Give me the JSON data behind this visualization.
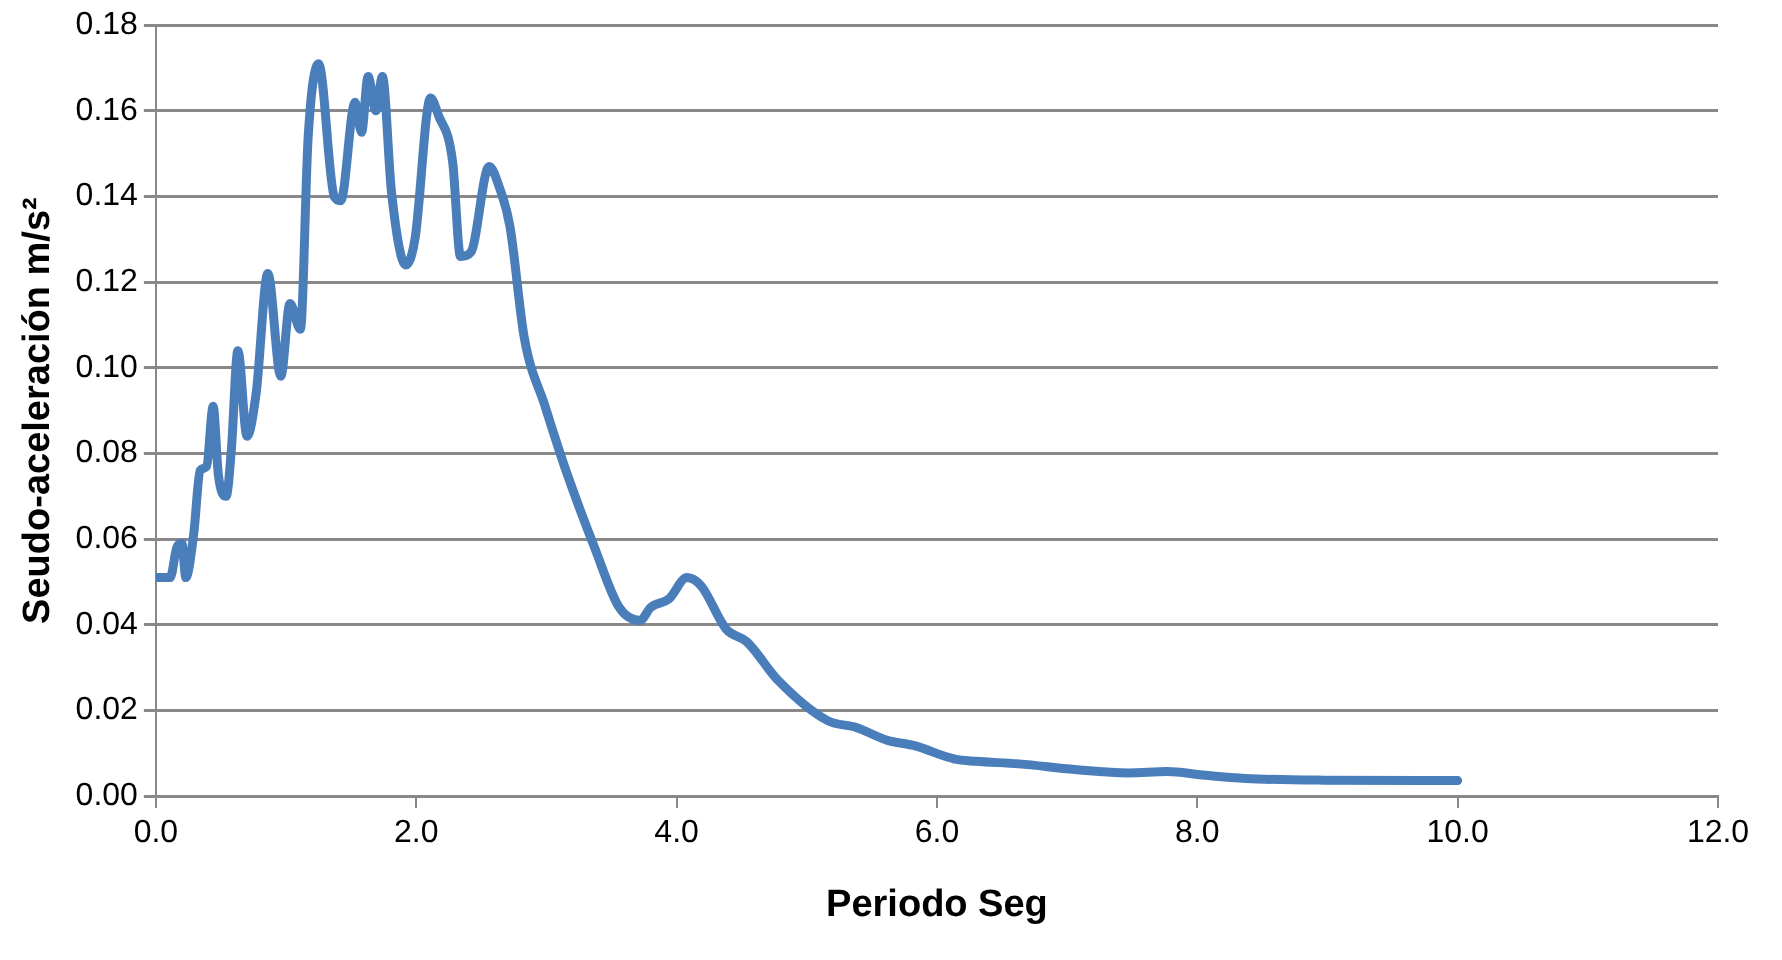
{
  "chart_data": {
    "type": "line",
    "xlabel": "Periodo Seg",
    "ylabel": "Seudo-aceleración m/s²",
    "x": [
      0.0,
      0.11,
      0.16,
      0.2,
      0.23,
      0.29,
      0.34,
      0.39,
      0.44,
      0.48,
      0.54,
      0.58,
      0.63,
      0.7,
      0.77,
      0.86,
      0.96,
      1.03,
      1.11,
      1.17,
      1.25,
      1.37,
      1.42,
      1.53,
      1.58,
      1.63,
      1.69,
      1.74,
      1.81,
      1.92,
      1.99,
      2.11,
      2.17,
      2.28,
      2.34,
      2.42,
      2.56,
      2.64,
      2.72,
      2.83,
      2.99,
      3.15,
      3.37,
      3.56,
      3.72,
      3.8,
      3.94,
      4.08,
      4.19,
      4.38,
      4.54,
      4.78,
      5.16,
      5.38,
      5.62,
      5.82,
      6.14,
      6.3,
      6.63,
      7.06,
      7.47,
      7.77,
      8.04,
      8.37,
      8.97,
      10.0
    ],
    "series": [
      {
        "color": "#4a7ebb",
        "values": [
          0.051,
          0.051,
          0.058,
          0.059,
          0.051,
          0.061,
          0.076,
          0.077,
          0.091,
          0.075,
          0.07,
          0.081,
          0.104,
          0.084,
          0.094,
          0.122,
          0.098,
          0.115,
          0.109,
          0.154,
          0.171,
          0.14,
          0.139,
          0.162,
          0.155,
          0.168,
          0.16,
          0.168,
          0.141,
          0.124,
          0.13,
          0.163,
          0.159,
          0.148,
          0.126,
          0.127,
          0.147,
          0.142,
          0.133,
          0.107,
          0.091,
          0.076,
          0.058,
          0.044,
          0.041,
          0.044,
          0.046,
          0.051,
          0.049,
          0.039,
          0.036,
          0.027,
          0.0176,
          0.016,
          0.013,
          0.0118,
          0.0086,
          0.0081,
          0.0075,
          0.0062,
          0.0054,
          0.0057,
          0.0049,
          0.0041,
          0.0037,
          0.0036
        ]
      }
    ],
    "xlim": [
      0,
      12
    ],
    "xticks": [
      {
        "value": 0,
        "label": "0.0"
      },
      {
        "value": 2,
        "label": "2.0"
      },
      {
        "value": 4,
        "label": "4.0"
      },
      {
        "value": 6,
        "label": "6.0"
      },
      {
        "value": 8,
        "label": "8.0"
      },
      {
        "value": 10,
        "label": "10.0"
      },
      {
        "value": 12,
        "label": "12.0"
      }
    ],
    "ylim": [
      0,
      0.18
    ],
    "yticks": [
      {
        "value": 0,
        "label": "0.00"
      },
      {
        "value": 0.02,
        "label": "0.02"
      },
      {
        "value": 0.04,
        "label": "0.04"
      },
      {
        "value": 0.06,
        "label": "0.06"
      },
      {
        "value": 0.08,
        "label": "0.08"
      },
      {
        "value": 0.1,
        "label": "0.10"
      },
      {
        "value": 0.12,
        "label": "0.12"
      },
      {
        "value": 0.14,
        "label": "0.14"
      },
      {
        "value": 0.16,
        "label": "0.16"
      },
      {
        "value": 0.18,
        "label": "0.18"
      }
    ],
    "grid": "y",
    "legend": false,
    "marker": "none",
    "line_style": "solid"
  }
}
